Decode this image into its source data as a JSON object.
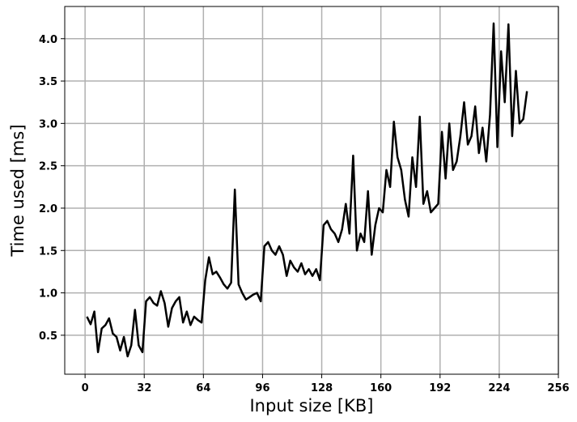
{
  "chart_data": {
    "type": "line",
    "x_label": "Input size [KB]",
    "y_label": "Time used [ms]",
    "x": [
      1,
      3,
      5,
      7,
      9,
      11,
      13,
      15,
      17,
      19,
      21,
      23,
      25,
      27,
      29,
      31,
      33,
      35,
      37,
      39,
      41,
      43,
      45,
      47,
      49,
      51,
      53,
      55,
      57,
      59,
      61,
      63,
      65,
      67,
      69,
      71,
      73,
      75,
      77,
      79,
      81,
      83,
      85,
      87,
      89,
      91,
      93,
      95,
      97,
      99,
      101,
      103,
      105,
      107,
      109,
      111,
      113,
      115,
      117,
      119,
      121,
      123,
      125,
      127,
      129,
      131,
      133,
      135,
      137,
      139,
      141,
      143,
      145,
      147,
      149,
      151,
      153,
      155,
      157,
      159,
      161,
      163,
      165,
      167,
      169,
      171,
      173,
      175,
      177,
      179,
      181,
      183,
      185,
      187,
      189,
      191,
      193,
      195,
      197,
      199,
      201,
      203,
      205,
      207,
      209,
      211,
      213,
      215,
      217,
      219,
      221,
      223,
      225,
      227,
      229,
      231,
      233,
      235,
      237,
      239
    ],
    "series": [
      {
        "color": "#000000",
        "values": [
          0.72,
          0.63,
          0.78,
          0.3,
          0.58,
          0.62,
          0.7,
          0.52,
          0.48,
          0.32,
          0.48,
          0.25,
          0.38,
          0.8,
          0.38,
          0.3,
          0.9,
          0.95,
          0.88,
          0.85,
          1.02,
          0.88,
          0.6,
          0.82,
          0.9,
          0.95,
          0.65,
          0.78,
          0.62,
          0.72,
          0.68,
          0.65,
          1.15,
          1.42,
          1.22,
          1.25,
          1.18,
          1.1,
          1.05,
          1.12,
          2.22,
          1.1,
          1.0,
          0.92,
          0.95,
          0.98,
          1.0,
          0.9,
          1.55,
          1.6,
          1.5,
          1.45,
          1.55,
          1.45,
          1.2,
          1.38,
          1.3,
          1.25,
          1.35,
          1.22,
          1.28,
          1.2,
          1.28,
          1.15,
          1.8,
          1.85,
          1.75,
          1.7,
          1.6,
          1.75,
          2.05,
          1.7,
          2.62,
          1.5,
          1.7,
          1.6,
          2.2,
          1.45,
          1.8,
          2.0,
          1.95,
          2.45,
          2.25,
          3.02,
          2.6,
          2.45,
          2.1,
          1.9,
          2.6,
          2.25,
          3.08,
          2.05,
          2.2,
          1.95,
          2.0,
          2.05,
          2.9,
          2.35,
          3.0,
          2.45,
          2.55,
          2.85,
          3.25,
          2.75,
          2.85,
          3.2,
          2.65,
          2.95,
          2.55,
          3.1,
          4.18,
          2.72,
          3.85,
          3.25,
          4.17,
          2.85,
          3.62,
          3.0,
          3.05,
          3.38
        ]
      }
    ],
    "xlim": [
      -11,
      256
    ],
    "ylim": [
      0.04,
      4.38
    ],
    "xticks": [
      0,
      32,
      64,
      96,
      128,
      160,
      192,
      224,
      256
    ],
    "yticks": [
      0.5,
      {
        "value": 1,
        "label": "1.0"
      },
      1.5,
      {
        "value": 2,
        "label": "2.0"
      },
      2.5,
      {
        "value": 3,
        "label": "3.0"
      },
      3.5,
      {
        "value": 4,
        "label": "4.0"
      }
    ],
    "grid": true
  }
}
